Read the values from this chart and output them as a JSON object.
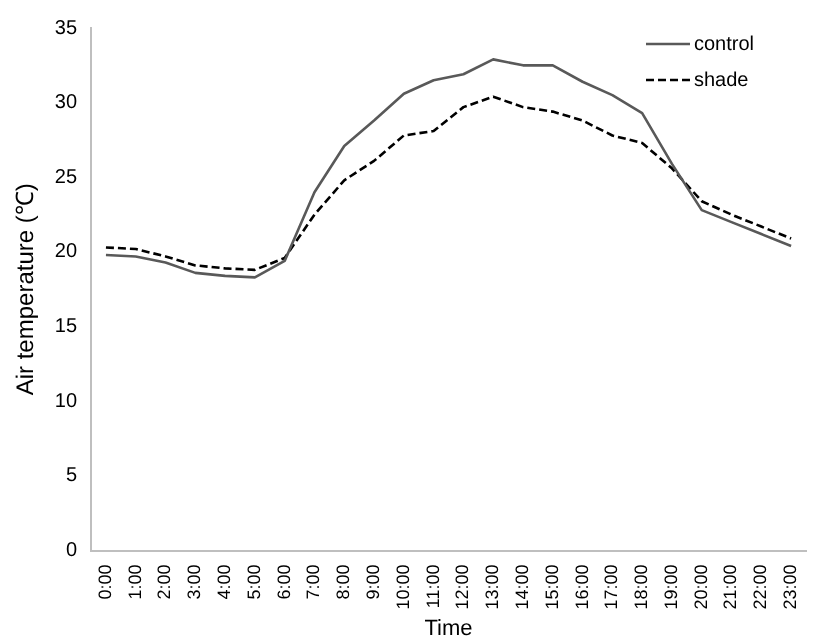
{
  "chart_data": {
    "type": "line",
    "xlabel": "Time",
    "ylabel": "Air temperature (℃)",
    "categories": [
      "0:00",
      "1:00",
      "2:00",
      "3:00",
      "4:00",
      "5:00",
      "6:00",
      "7:00",
      "8:00",
      "9:00",
      "10:00",
      "11:00",
      "12:00",
      "13:00",
      "14:00",
      "15:00",
      "16:00",
      "17:00",
      "18:00",
      "19:00",
      "20:00",
      "21:00",
      "22:00",
      "23:00"
    ],
    "series": [
      {
        "name": "control",
        "color": "#595959",
        "line_style": "solid",
        "values": [
          19.8,
          19.7,
          19.3,
          18.6,
          18.4,
          18.3,
          19.4,
          24.0,
          27.1,
          28.8,
          30.6,
          31.5,
          31.9,
          32.9,
          32.5,
          32.5,
          31.4,
          30.5,
          29.3,
          25.9,
          22.8,
          22.0,
          21.2,
          20.4
        ]
      },
      {
        "name": "shade",
        "color": "#000000",
        "line_style": "dashed",
        "values": [
          20.3,
          20.2,
          19.7,
          19.1,
          18.9,
          18.8,
          19.6,
          22.5,
          24.8,
          26.1,
          27.8,
          28.1,
          29.7,
          30.4,
          29.7,
          29.4,
          28.8,
          27.8,
          27.3,
          25.6,
          23.4,
          22.5,
          21.7,
          20.9
        ]
      }
    ],
    "ylim": [
      0,
      35
    ],
    "yticks": [
      0,
      5,
      10,
      15,
      20,
      25,
      30,
      35
    ],
    "grid": false,
    "legend": "top right",
    "marker": "none"
  }
}
